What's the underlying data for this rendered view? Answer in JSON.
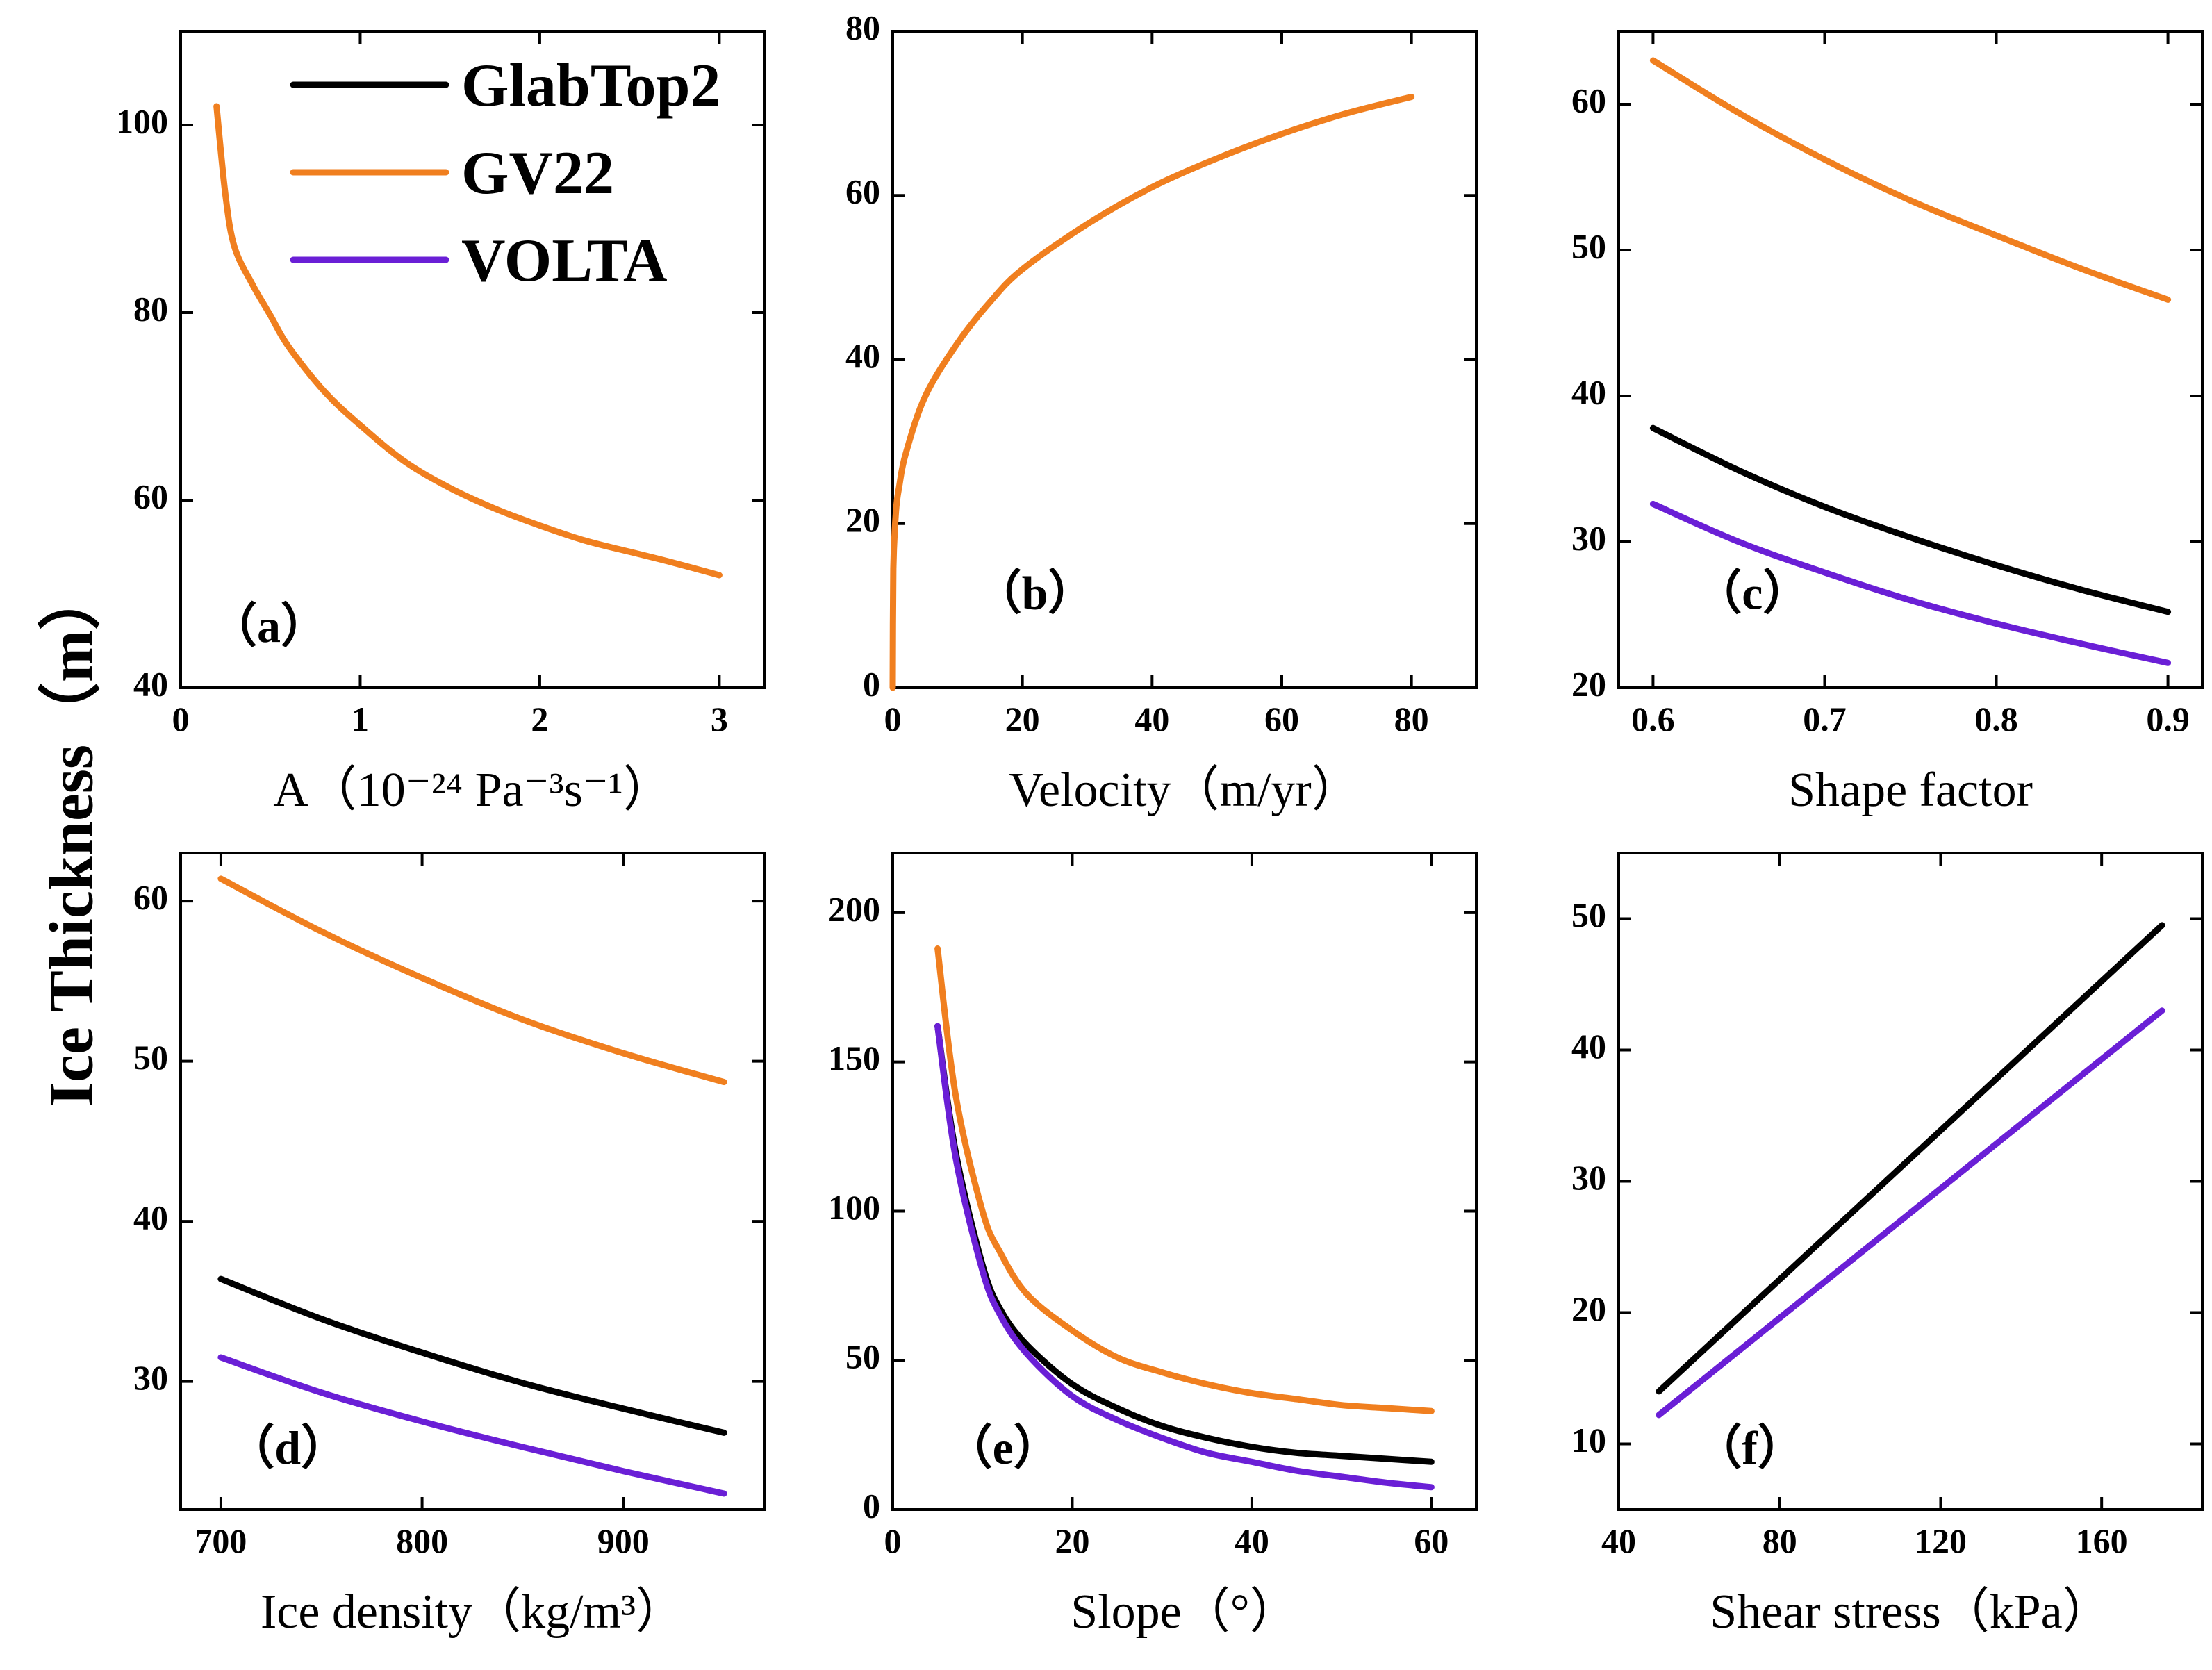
{
  "figure": {
    "ylabel": "Ice Thickness（m）",
    "series_colors": {
      "GlabTop2": "#000000",
      "GV22": "#f07f1f",
      "VOLTA": "#6a1fd6"
    }
  },
  "legend": {
    "entries": [
      {
        "name": "GlabTop2",
        "color": "#000000"
      },
      {
        "name": "GV22",
        "color": "#f07f1f"
      },
      {
        "name": "VOLTA",
        "color": "#6a1fd6"
      }
    ]
  },
  "chart_data": [
    {
      "id": "a",
      "type": "line",
      "tag": "（a）",
      "xlabel": "A（10⁻²⁴ Pa⁻³s⁻¹）",
      "xlim": [
        0,
        3.25
      ],
      "ylim": [
        40,
        110
      ],
      "xticks": [
        0,
        1,
        2,
        3
      ],
      "yticks": [
        40,
        60,
        80,
        100
      ],
      "series": [
        {
          "name": "GV22",
          "x": [
            0.2,
            0.25,
            0.3,
            0.4,
            0.5,
            0.6,
            0.8,
            1.0,
            1.25,
            1.5,
            1.75,
            2.0,
            2.25,
            2.5,
            2.75,
            3.0
          ],
          "values": [
            102,
            92.5,
            87,
            83,
            79.7,
            76.4,
            71.6,
            68,
            64.1,
            61.3,
            59.1,
            57.3,
            55.7,
            54.5,
            53.3,
            52
          ]
        }
      ]
    },
    {
      "id": "b",
      "type": "line",
      "tag": "（b）",
      "xlabel": "Velocity（m/yr）",
      "xlim": [
        0,
        90
      ],
      "ylim": [
        0,
        80
      ],
      "xticks": [
        0,
        20,
        40,
        60,
        80
      ],
      "yticks": [
        0,
        20,
        40,
        60,
        80
      ],
      "series": [
        {
          "name": "GV22",
          "x": [
            0,
            0.1,
            0.5,
            1,
            2,
            5,
            10,
            15,
            20,
            30,
            40,
            50,
            60,
            70,
            80
          ],
          "values": [
            0,
            14.5,
            21.5,
            24.5,
            28.5,
            35.5,
            42,
            47,
            51,
            56.5,
            61,
            64.5,
            67.5,
            70,
            72
          ]
        }
      ]
    },
    {
      "id": "c",
      "type": "line",
      "tag": "（c）",
      "xlabel": "Shape factor",
      "xlim": [
        0.58,
        0.92
      ],
      "ylim": [
        20,
        65
      ],
      "xticks": [
        0.6,
        0.7,
        0.8,
        0.9
      ],
      "yticks": [
        20,
        30,
        40,
        50,
        60
      ],
      "series": [
        {
          "name": "GlabTop2",
          "x": [
            0.6,
            0.65,
            0.7,
            0.75,
            0.8,
            0.85,
            0.9
          ],
          "values": [
            37.8,
            34.9,
            32.4,
            30.3,
            28.4,
            26.7,
            25.2
          ]
        },
        {
          "name": "GV22",
          "x": [
            0.6,
            0.65,
            0.7,
            0.75,
            0.8,
            0.85,
            0.9
          ],
          "values": [
            63,
            59.4,
            56.2,
            53.4,
            51,
            48.7,
            46.6
          ]
        },
        {
          "name": "VOLTA",
          "x": [
            0.6,
            0.65,
            0.7,
            0.75,
            0.8,
            0.85,
            0.9
          ],
          "values": [
            32.6,
            30,
            27.9,
            26,
            24.4,
            23,
            21.7
          ]
        }
      ]
    },
    {
      "id": "d",
      "type": "line",
      "tag": "（d）",
      "xlabel": "Ice density（kg/m³）",
      "xlim": [
        680,
        970
      ],
      "ylim": [
        22,
        63
      ],
      "xticks": [
        700,
        800,
        900
      ],
      "yticks": [
        30,
        40,
        50,
        60
      ],
      "series": [
        {
          "name": "GlabTop2",
          "x": [
            700,
            750,
            800,
            850,
            900,
            950
          ],
          "values": [
            36.4,
            33.9,
            31.8,
            29.9,
            28.3,
            26.8
          ]
        },
        {
          "name": "GV22",
          "x": [
            700,
            750,
            800,
            850,
            900,
            950
          ],
          "values": [
            61.4,
            58.1,
            55.2,
            52.6,
            50.5,
            48.7
          ]
        },
        {
          "name": "VOLTA",
          "x": [
            700,
            750,
            800,
            850,
            900,
            950
          ],
          "values": [
            31.5,
            29.3,
            27.5,
            25.9,
            24.4,
            23
          ]
        }
      ]
    },
    {
      "id": "e",
      "type": "line",
      "tag": "（e）",
      "xlabel": "Slope（°）",
      "xlim": [
        0,
        65
      ],
      "ylim": [
        0,
        220
      ],
      "xticks": [
        0,
        20,
        40,
        60
      ],
      "yticks": [
        0,
        50,
        100,
        150,
        200
      ],
      "series": [
        {
          "name": "GlabTop2",
          "x": [
            5,
            7,
            10,
            12,
            15,
            20,
            25,
            30,
            35,
            40,
            45,
            50,
            55,
            60
          ],
          "values": [
            162,
            120,
            82,
            67,
            55,
            42,
            34,
            28,
            24,
            21,
            19,
            18,
            17,
            16
          ]
        },
        {
          "name": "GV22",
          "x": [
            5,
            7,
            10,
            12,
            15,
            20,
            25,
            30,
            35,
            40,
            45,
            50,
            55,
            60
          ],
          "values": [
            188,
            139,
            100,
            86,
            72,
            60,
            51,
            46,
            42,
            39,
            37,
            35,
            34,
            33
          ]
        },
        {
          "name": "VOLTA",
          "x": [
            5,
            7,
            10,
            12,
            15,
            20,
            25,
            30,
            35,
            40,
            45,
            50,
            55,
            60
          ],
          "values": [
            162,
            118,
            80,
            65,
            52,
            38,
            30,
            24,
            19,
            16,
            13,
            11,
            9,
            7.5
          ]
        }
      ]
    },
    {
      "id": "f",
      "type": "line",
      "tag": "（f）",
      "xlabel": "Shear stress（kPa）",
      "xlim": [
        40,
        185
      ],
      "ylim": [
        5,
        55
      ],
      "xticks": [
        40,
        80,
        120,
        160
      ],
      "yticks": [
        10,
        20,
        30,
        40,
        50
      ],
      "series": [
        {
          "name": "GlabTop2",
          "x": [
            50,
            175
          ],
          "values": [
            14,
            49.5
          ]
        },
        {
          "name": "VOLTA",
          "x": [
            50,
            175
          ],
          "values": [
            12.2,
            43
          ]
        }
      ]
    }
  ]
}
